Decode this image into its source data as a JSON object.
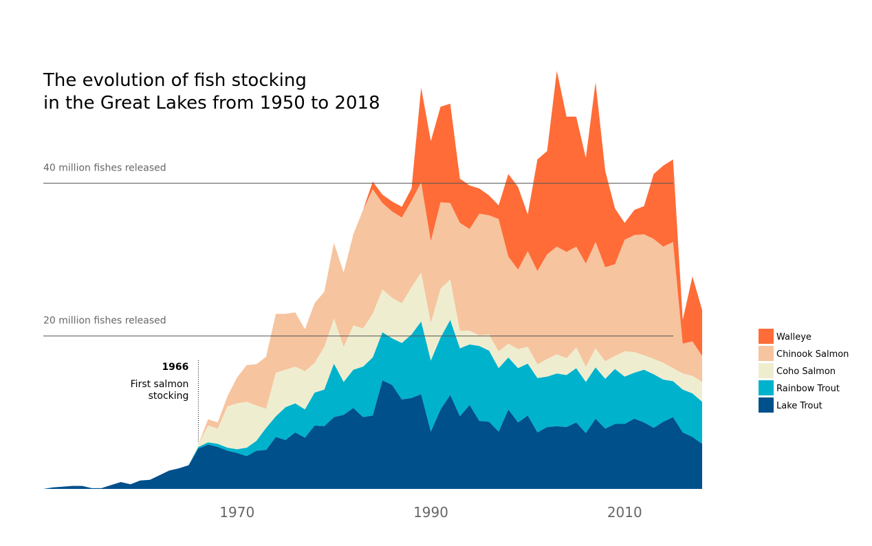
{
  "chart_data": {
    "type": "area",
    "stacked": true,
    "title_lines": [
      "The evolution of fish stocking",
      "in the Great Lakes from 1950 to 2018"
    ],
    "xlabel": "",
    "ylabel": "",
    "xlim": [
      1950,
      2018
    ],
    "ylim": [
      0,
      60
    ],
    "x_ticks": [
      1970,
      1990,
      2010
    ],
    "grid": false,
    "legend_position": "right",
    "reference_lines": [
      {
        "value": 40,
        "label": "40 million fishes released"
      },
      {
        "value": 20,
        "label": "20 million fishes released"
      }
    ],
    "annotation": {
      "x": 1966,
      "year_label": "1966",
      "text_lines": [
        "First salmon",
        "stocking"
      ]
    },
    "x": [
      1950,
      1951,
      1952,
      1953,
      1954,
      1955,
      1956,
      1957,
      1958,
      1959,
      1960,
      1961,
      1962,
      1963,
      1964,
      1965,
      1966,
      1967,
      1968,
      1969,
      1970,
      1971,
      1972,
      1973,
      1974,
      1975,
      1976,
      1977,
      1978,
      1979,
      1980,
      1981,
      1982,
      1983,
      1984,
      1985,
      1986,
      1987,
      1988,
      1989,
      1990,
      1991,
      1992,
      1993,
      1994,
      1995,
      1996,
      1997,
      1998,
      1999,
      2000,
      2001,
      2002,
      2003,
      2004,
      2005,
      2006,
      2007,
      2008,
      2009,
      2010,
      2011,
      2012,
      2013,
      2014,
      2015,
      2016,
      2017,
      2018
    ],
    "series": [
      {
        "name": "Lake Trout",
        "color": "#00508c",
        "values": [
          0.0,
          0.2,
          0.3,
          0.4,
          0.4,
          0.1,
          0.1,
          0.5,
          0.9,
          0.6,
          1.1,
          1.2,
          1.8,
          2.4,
          2.7,
          3.1,
          5.3,
          5.8,
          5.5,
          5.0,
          4.7,
          4.3,
          5.0,
          5.1,
          6.8,
          6.4,
          7.4,
          6.7,
          8.3,
          8.2,
          9.4,
          9.7,
          10.6,
          9.4,
          9.6,
          14.2,
          13.6,
          11.7,
          11.9,
          12.4,
          7.5,
          10.4,
          12.3,
          9.5,
          11.0,
          8.9,
          8.8,
          7.5,
          10.4,
          8.7,
          9.6,
          7.4,
          8.1,
          8.2,
          8.1,
          8.7,
          7.3,
          9.2,
          7.9,
          8.5,
          8.5,
          9.2,
          8.7,
          8.0,
          8.8,
          9.4,
          7.4,
          6.8,
          5.9
        ]
      },
      {
        "name": "Rainbow Trout",
        "color": "#00b2cc",
        "values": [
          0,
          0,
          0,
          0,
          0,
          0,
          0,
          0,
          0,
          0,
          0,
          0,
          0,
          0,
          0,
          0,
          0.2,
          0.3,
          0.4,
          0.4,
          0.5,
          1.1,
          1.3,
          2.9,
          2.7,
          4.3,
          3.8,
          3.7,
          4.3,
          4.8,
          7.0,
          4.3,
          5.0,
          6.6,
          7.6,
          6.3,
          6.1,
          7.4,
          8.3,
          9.5,
          9.3,
          9.4,
          9.8,
          8.9,
          7.9,
          9.8,
          9.3,
          8.3,
          6.8,
          7.1,
          6.8,
          7.1,
          6.6,
          6.9,
          6.8,
          7.1,
          6.7,
          6.7,
          6.5,
          7.2,
          6.2,
          6.0,
          6.9,
          7.0,
          5.5,
          4.7,
          5.6,
          5.7,
          5.5
        ]
      },
      {
        "name": "Coho Salmon",
        "color": "#efedcf",
        "values": [
          0,
          0,
          0,
          0,
          0,
          0,
          0,
          0,
          0,
          0,
          0,
          0,
          0,
          0,
          0,
          0,
          0.3,
          2.2,
          2.0,
          5.4,
          6.0,
          6.0,
          4.6,
          2.5,
          5.7,
          4.9,
          4.8,
          5.0,
          3.9,
          5.6,
          5.9,
          4.6,
          5.8,
          5.0,
          5.7,
          5.6,
          5.3,
          5.2,
          6.2,
          6.4,
          4.9,
          6.4,
          5.3,
          2.3,
          1.8,
          1.4,
          2.1,
          2.2,
          1.8,
          2.5,
          2.2,
          1.8,
          2.3,
          2.5,
          2.2,
          2.7,
          2.0,
          2.5,
          2.3,
          1.7,
          3.3,
          2.7,
          1.9,
          2.0,
          2.2,
          1.7,
          2.1,
          2.3,
          2.6
        ]
      },
      {
        "name": "Chinook Salmon",
        "color": "#f6c49f",
        "values": [
          0,
          0,
          0,
          0,
          0,
          0,
          0,
          0,
          0,
          0,
          0,
          0,
          0,
          0,
          0,
          0,
          0,
          0.8,
          0.8,
          1.3,
          3.4,
          4.8,
          5.4,
          6.8,
          7.7,
          7.3,
          7.1,
          5.5,
          7.8,
          7.2,
          9.9,
          9.7,
          11.9,
          15.5,
          16.3,
          11.3,
          11.3,
          11.2,
          11.3,
          11.8,
          10.7,
          11.3,
          10.0,
          14.1,
          13.3,
          15.9,
          15.6,
          17.3,
          11.4,
          10.4,
          12.5,
          12.2,
          13.7,
          14.1,
          13.9,
          13.2,
          13.5,
          13.9,
          12.3,
          12.0,
          14.6,
          15.3,
          15.8,
          15.7,
          15.2,
          16.5,
          3.9,
          4.5,
          3.4
        ]
      },
      {
        "name": "Walleye",
        "color": "#ff6c37",
        "values": [
          0,
          0,
          0,
          0,
          0,
          0,
          0,
          0,
          0,
          0,
          0,
          0,
          0,
          0,
          0,
          0,
          0,
          0,
          0,
          0,
          0,
          0,
          0,
          0,
          0,
          0,
          0,
          0,
          0,
          0,
          0,
          0,
          0,
          0,
          1.0,
          1.1,
          1.3,
          1.4,
          1.6,
          12.4,
          13.1,
          12.5,
          13.0,
          5.8,
          5.7,
          3.3,
          2.6,
          1.8,
          10.8,
          10.8,
          4.8,
          14.6,
          13.5,
          23.0,
          17.7,
          17.0,
          13.8,
          20.9,
          12.6,
          7.3,
          2.2,
          3.3,
          3.7,
          8.5,
          10.6,
          10.8,
          3.1,
          8.5,
          6.0
        ]
      }
    ]
  }
}
